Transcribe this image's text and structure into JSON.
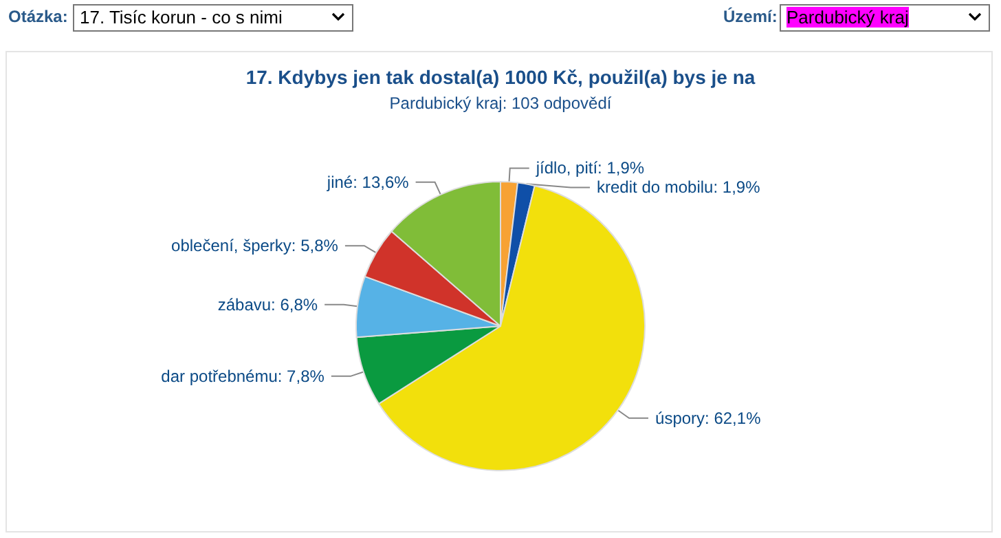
{
  "chart_data": {
    "type": "pie",
    "title": "17. Kdybys jen tak dostal(a) 1000 Kč, použil(a) bys je na",
    "subtitle": "Pardubický kraj: 103 odpovědí",
    "annotations": [
      "Otázka:",
      "17. Tisíc korun - co s nimi",
      "Území:",
      "Pardubický kraj"
    ],
    "categories": [
      "jídlo, pití",
      "kredit do mobilu",
      "úspory",
      "dar potřebnému",
      "zábavu",
      "oblečení, šperky",
      "jiné"
    ],
    "values": [
      1.9,
      1.9,
      62.1,
      7.8,
      6.8,
      5.8,
      13.6
    ],
    "value_labels": [
      "1,9%",
      "1,9%",
      "62,1%",
      "7,8%",
      "6,8%",
      "5,8%",
      "13,6%"
    ],
    "colors": [
      "#f7a234",
      "#0f4fa8",
      "#f2e00c",
      "#0a9a40",
      "#56b2e6",
      "#d0332a",
      "#80bd38"
    ],
    "legend": false
  }
}
